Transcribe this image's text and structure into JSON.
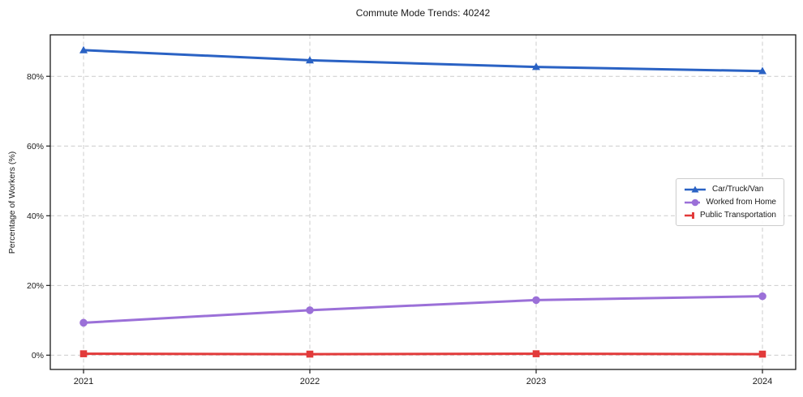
{
  "chart_data": {
    "type": "line",
    "title": "Commute Mode Trends: 40242",
    "xlabel": "",
    "ylabel": "Percentage of Workers (%)",
    "categories": [
      "2021",
      "2022",
      "2023",
      "2024"
    ],
    "yticks": [
      0,
      20,
      40,
      60,
      80
    ],
    "ytick_labels": [
      "0%",
      "20%",
      "40%",
      "60%",
      "80%"
    ],
    "ylim": [
      -4.1,
      91.9
    ],
    "grid": "dashed-both-axes",
    "legend_position": "center-right",
    "colors": {
      "grid": "#cccccc",
      "spine": "#1a1a1a",
      "text": "#1a1a1a",
      "background": "#ffffff"
    },
    "series": [
      {
        "name": "Car/Truck/Van",
        "color": "#2a62c4",
        "marker": "triangle",
        "values": [
          87.5,
          84.6,
          82.7,
          81.5
        ]
      },
      {
        "name": "Worked from Home",
        "color": "#9b70d8",
        "marker": "circle",
        "values": [
          9.3,
          12.9,
          15.8,
          16.9
        ]
      },
      {
        "name": "Public Transportation",
        "color": "#e23a3a",
        "marker": "square",
        "values": [
          0.4,
          0.3,
          0.4,
          0.3
        ]
      }
    ]
  }
}
